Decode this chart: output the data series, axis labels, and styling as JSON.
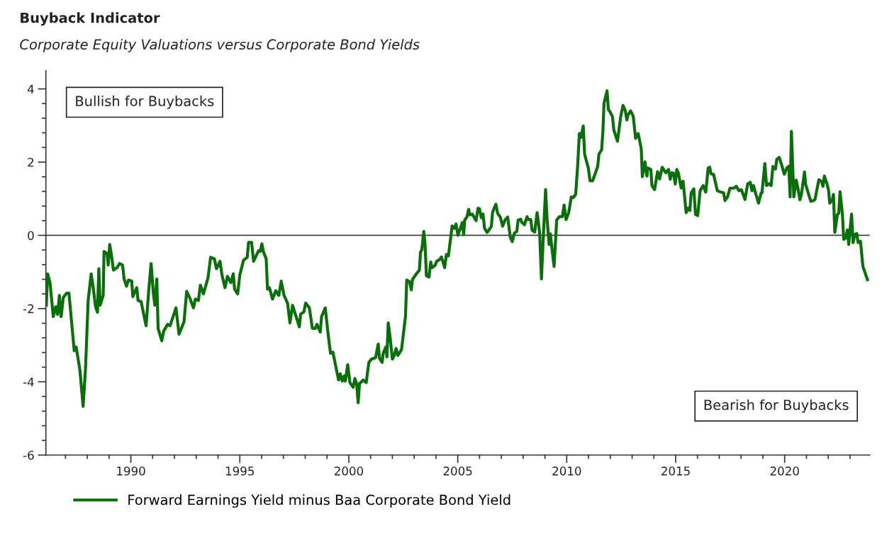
{
  "chart_data": {
    "type": "line",
    "title": "Buyback Indicator",
    "subtitle": "Corporate Equity Valuations versus Corporate Bond Yields",
    "annotations": [
      "Bullish for Buybacks",
      "Bearish for Buybacks"
    ],
    "xlim": [
      1986.1,
      2023.9
    ],
    "xticks": [
      {
        "value": 1987,
        "label": null
      },
      {
        "value": 1988,
        "label": null
      },
      {
        "value": 1989,
        "label": null
      },
      1990,
      {
        "value": 1991,
        "label": null
      },
      {
        "value": 1992,
        "label": null
      },
      {
        "value": 1993,
        "label": null
      },
      {
        "value": 1994,
        "label": null
      },
      1995,
      {
        "value": 1996,
        "label": null
      },
      {
        "value": 1997,
        "label": null
      },
      {
        "value": 1998,
        "label": null
      },
      {
        "value": 1999,
        "label": null
      },
      2000,
      {
        "value": 2001,
        "label": null
      },
      {
        "value": 2002,
        "label": null
      },
      {
        "value": 2003,
        "label": null
      },
      {
        "value": 2004,
        "label": null
      },
      2005,
      {
        "value": 2006,
        "label": null
      },
      {
        "value": 2007,
        "label": null
      },
      {
        "value": 2008,
        "label": null
      },
      {
        "value": 2009,
        "label": null
      },
      2010,
      {
        "value": 2011,
        "label": null
      },
      {
        "value": 2012,
        "label": null
      },
      {
        "value": 2013,
        "label": null
      },
      {
        "value": 2014,
        "label": null
      },
      2015,
      {
        "value": 2016,
        "label": null
      },
      {
        "value": 2017,
        "label": null
      },
      {
        "value": 2018,
        "label": null
      },
      {
        "value": 2019,
        "label": null
      },
      2020,
      {
        "value": 2021,
        "label": null
      },
      {
        "value": 2022,
        "label": null
      },
      {
        "value": 2023,
        "label": null
      }
    ],
    "ylim": [
      -6,
      4.5
    ],
    "yticks": [
      {
        "value": -6,
        "label": "-6"
      },
      {
        "value": -5.6,
        "label": null
      },
      {
        "value": -5.2,
        "label": null
      },
      {
        "value": -4.8,
        "label": null
      },
      {
        "value": -4.4,
        "label": null
      },
      {
        "value": -4,
        "label": "-4"
      },
      {
        "value": -3.6,
        "label": null
      },
      {
        "value": -3.2,
        "label": null
      },
      {
        "value": -2.8,
        "label": null
      },
      {
        "value": -2.4,
        "label": null
      },
      {
        "value": -2,
        "label": "-2"
      },
      {
        "value": -1.6,
        "label": null
      },
      {
        "value": -1.2,
        "label": null
      },
      {
        "value": -0.8,
        "label": null
      },
      {
        "value": -0.4,
        "label": null
      },
      0,
      {
        "value": 0.4,
        "label": null
      },
      {
        "value": 0.8,
        "label": null
      },
      {
        "value": 1.2,
        "label": null
      },
      {
        "value": 1.6,
        "label": null
      },
      2,
      {
        "value": 2.4,
        "label": null
      },
      {
        "value": 2.8,
        "label": null
      },
      {
        "value": 3.2,
        "label": null
      },
      {
        "value": 3.6,
        "label": null
      },
      4
    ],
    "ref_lines": [
      {
        "axis": "y",
        "value": 0,
        "color": "#404040"
      }
    ],
    "grid": false,
    "legend": "bottom",
    "marker": "none",
    "line_style": "solid",
    "x": [
      1986.12,
      1986.18,
      1986.29,
      1986.44,
      1986.55,
      1986.64,
      1986.72,
      1986.8,
      1986.9,
      1987.05,
      1987.16,
      1987.4,
      1987.49,
      1987.66,
      1987.81,
      1987.92,
      1988.04,
      1988.18,
      1988.29,
      1988.38,
      1988.47,
      1988.53,
      1988.59,
      1988.73,
      1988.77,
      1988.91,
      1988.96,
      1989.03,
      1989.11,
      1989.2,
      1989.37,
      1989.48,
      1989.62,
      1989.69,
      1989.8,
      1989.89,
      1990.04,
      1990.09,
      1990.27,
      1990.33,
      1990.47,
      1990.7,
      1990.82,
      1990.93,
      1991.03,
      1991.1,
      1991.19,
      1991.25,
      1991.42,
      1991.51,
      1991.69,
      1991.8,
      1992.07,
      1992.21,
      1992.44,
      1992.56,
      1992.7,
      1992.87,
      1992.96,
      1993.1,
      1993.19,
      1993.33,
      1993.54,
      1993.66,
      1993.83,
      1993.93,
      1994.09,
      1994.18,
      1994.32,
      1994.43,
      1994.59,
      1994.7,
      1994.76,
      1994.9,
      1995.0,
      1995.17,
      1995.34,
      1995.4,
      1995.54,
      1995.63,
      1995.86,
      1995.94,
      1996.01,
      1996.09,
      1996.21,
      1996.27,
      1996.36,
      1996.5,
      1996.65,
      1996.79,
      1996.9,
      1997.03,
      1997.19,
      1997.3,
      1997.42,
      1997.53,
      1997.73,
      1997.79,
      1997.94,
      1998.02,
      1998.19,
      1998.33,
      1998.46,
      1998.54,
      1998.69,
      1998.75,
      1998.92,
      1999.04,
      1999.16,
      1999.27,
      1999.53,
      1999.61,
      1999.7,
      1999.79,
      1999.84,
      1999.95,
      2000.05,
      2000.2,
      2000.28,
      2000.36,
      2000.43,
      2000.49,
      2000.66,
      2000.8,
      2000.92,
      2001.04,
      2001.23,
      2001.35,
      2001.41,
      2001.53,
      2001.58,
      2001.7,
      2001.75,
      2001.81,
      2001.9,
      2002.0,
      2002.08,
      2002.17,
      2002.25,
      2002.42,
      2002.6,
      2002.66,
      2002.79,
      2002.87,
      2002.92,
      2003.1,
      2003.24,
      2003.29,
      2003.35,
      2003.44,
      2003.5,
      2003.56,
      2003.68,
      2003.76,
      2003.82,
      2003.96,
      2004.03,
      2004.17,
      2004.25,
      2004.4,
      2004.48,
      2004.57,
      2004.66,
      2004.74,
      2004.84,
      2004.92,
      2005.01,
      2005.21,
      2005.27,
      2005.32,
      2005.42,
      2005.5,
      2005.55,
      2005.67,
      2005.84,
      2005.93,
      2006.0,
      2006.08,
      2006.16,
      2006.23,
      2006.35,
      2006.54,
      2006.6,
      2006.75,
      2006.83,
      2006.95,
      2007.06,
      2007.17,
      2007.29,
      2007.41,
      2007.5,
      2007.6,
      2007.71,
      2007.77,
      2007.89,
      2007.92,
      2008.06,
      2008.18,
      2008.23,
      2008.35,
      2008.41,
      2008.53,
      2008.64,
      2008.7,
      2008.76,
      2008.84,
      2008.93,
      2009.03,
      2009.1,
      2009.19,
      2009.25,
      2009.33,
      2009.42,
      2009.54,
      2009.66,
      2009.8,
      2009.88,
      2009.97,
      2010.09,
      2010.21,
      2010.3,
      2010.41,
      2010.5,
      2010.58,
      2010.65,
      2010.76,
      2010.82,
      2010.99,
      2011.07,
      2011.19,
      2011.42,
      2011.48,
      2011.6,
      2011.66,
      2011.71,
      2011.85,
      2011.91,
      2012.0,
      2012.1,
      2012.16,
      2012.33,
      2012.47,
      2012.58,
      2012.69,
      2012.76,
      2012.81,
      2012.93,
      2013.05,
      2013.16,
      2013.28,
      2013.42,
      2013.47,
      2013.59,
      2013.68,
      2013.72,
      2013.86,
      2013.91,
      2014.03,
      2014.17,
      2014.26,
      2014.38,
      2014.55,
      2014.67,
      2014.75,
      2014.82,
      2014.9,
      2014.98,
      2015.05,
      2015.13,
      2015.25,
      2015.34,
      2015.48,
      2015.57,
      2015.65,
      2015.71,
      2015.83,
      2015.91,
      2016.01,
      2016.12,
      2016.26,
      2016.38,
      2016.49,
      2016.56,
      2016.62,
      2016.74,
      2016.91,
      2017.03,
      2017.2,
      2017.26,
      2017.38,
      2017.49,
      2017.67,
      2017.78,
      2017.9,
      2018.01,
      2018.18,
      2018.3,
      2018.42,
      2018.5,
      2018.57,
      2018.68,
      2018.8,
      2018.92,
      2018.96,
      2019.09,
      2019.17,
      2019.29,
      2019.38,
      2019.46,
      2019.58,
      2019.64,
      2019.75,
      2019.87,
      2019.98,
      2020.1,
      2020.19,
      2020.25,
      2020.31,
      2020.42,
      2020.53,
      2020.62,
      2020.7,
      2020.77,
      2020.91,
      2020.96,
      2021.08,
      2021.2,
      2021.33,
      2021.39,
      2021.57,
      2021.69,
      2021.76,
      2021.82,
      2021.93,
      2022.01,
      2022.07,
      2022.19,
      2022.24,
      2022.3,
      2022.42,
      2022.48,
      2022.54,
      2022.6,
      2022.65,
      2022.71,
      2022.8,
      2022.88,
      2022.94,
      2022.99,
      2023.07,
      2023.14,
      2023.22,
      2023.31,
      2023.37,
      2023.48,
      2023.59,
      2023.8
    ],
    "series": [
      {
        "name": "Forward Earnings Yield minus Baa Corporate Bond Yield",
        "color": "#0a6e0a",
        "values": [
          -1.91,
          -1.05,
          -1.29,
          -2.22,
          -1.95,
          -2.16,
          -1.64,
          -2.22,
          -1.7,
          -1.58,
          -1.58,
          -3.15,
          -3.05,
          -3.67,
          -4.67,
          -3.63,
          -1.78,
          -1.05,
          -1.51,
          -1.95,
          -2.1,
          -0.91,
          -1.91,
          -1.64,
          -0.44,
          -0.5,
          -0.81,
          -0.25,
          -0.54,
          -0.95,
          -0.88,
          -0.77,
          -0.81,
          -1.19,
          -1.39,
          -1.22,
          -1.25,
          -1.67,
          -1.43,
          -1.78,
          -1.81,
          -2.47,
          -1.5,
          -0.77,
          -1.57,
          -1.91,
          -1.19,
          -2.54,
          -2.88,
          -2.61,
          -2.43,
          -2.47,
          -1.98,
          -2.7,
          -2.36,
          -1.53,
          -1.7,
          -1.98,
          -1.74,
          -1.78,
          -1.36,
          -1.6,
          -1.16,
          -0.6,
          -0.64,
          -0.91,
          -0.71,
          -1.08,
          -1.43,
          -1.12,
          -1.29,
          -1.05,
          -1.47,
          -1.6,
          -1.08,
          -0.68,
          -0.6,
          -0.19,
          -0.19,
          -0.71,
          -0.42,
          -0.44,
          -0.23,
          -0.46,
          -0.64,
          -1.47,
          -1.43,
          -1.74,
          -1.51,
          -1.64,
          -1.25,
          -1.64,
          -1.85,
          -2.39,
          -1.91,
          -2.12,
          -2.5,
          -2.15,
          -2.09,
          -1.85,
          -1.98,
          -2.54,
          -2.54,
          -2.43,
          -2.64,
          -2.22,
          -1.98,
          -2.64,
          -3.22,
          -3.19,
          -3.95,
          -3.78,
          -3.98,
          -3.84,
          -3.98,
          -3.53,
          -4.02,
          -4.15,
          -3.91,
          -4.05,
          -4.57,
          -4.05,
          -3.95,
          -4.02,
          -3.47,
          -3.38,
          -3.34,
          -2.97,
          -3.36,
          -3.47,
          -3.22,
          -3.05,
          -3.32,
          -2.39,
          -2.81,
          -3.38,
          -3.29,
          -3.09,
          -3.28,
          -3.12,
          -2.22,
          -1.22,
          -1.27,
          -1.49,
          -1.21,
          -1.05,
          -0.95,
          -0.46,
          -0.4,
          0.11,
          -0.25,
          -1.1,
          -1.14,
          -0.73,
          -0.88,
          -0.82,
          -0.71,
          -0.66,
          -0.59,
          -0.88,
          -0.52,
          -0.56,
          -0.14,
          0.26,
          0.19,
          0.31,
          0.0,
          0.35,
          0.02,
          0.42,
          0.5,
          0.71,
          0.56,
          0.58,
          0.4,
          0.74,
          0.72,
          0.48,
          0.58,
          0.19,
          0.08,
          0.24,
          0.64,
          0.85,
          0.6,
          0.5,
          0.25,
          0.42,
          0.5,
          -0.05,
          -0.17,
          0.06,
          0.11,
          0.42,
          0.44,
          0.37,
          0.29,
          0.51,
          0.43,
          0.43,
          0.14,
          0.09,
          0.62,
          0.37,
          0.02,
          -1.19,
          0.02,
          1.25,
          0.43,
          -0.25,
          0.04,
          -0.4,
          -0.85,
          0.42,
          0.51,
          0.51,
          0.83,
          0.43,
          0.62,
          1.05,
          1.03,
          1.12,
          1.88,
          2.78,
          2.67,
          2.99,
          2.22,
          1.84,
          1.49,
          1.49,
          1.88,
          2.22,
          2.33,
          2.84,
          3.6,
          3.95,
          3.44,
          3.36,
          3.24,
          2.88,
          2.57,
          3.22,
          3.55,
          3.4,
          3.15,
          3.29,
          3.4,
          3.26,
          2.65,
          2.78,
          2.36,
          1.6,
          2.01,
          1.62,
          1.84,
          1.8,
          1.36,
          1.25,
          1.74,
          1.54,
          1.86,
          1.71,
          1.8,
          1.53,
          1.71,
          1.69,
          1.4,
          1.8,
          1.69,
          1.29,
          1.48,
          0.62,
          0.74,
          0.68,
          1.16,
          1.27,
          0.57,
          0.54,
          1.22,
          1.36,
          1.18,
          1.84,
          1.86,
          1.68,
          1.66,
          1.22,
          1.19,
          1.16,
          0.95,
          1.05,
          1.29,
          1.29,
          1.34,
          1.22,
          1.25,
          0.98,
          1.4,
          1.45,
          1.22,
          1.36,
          1.12,
          0.88,
          1.16,
          1.16,
          1.96,
          1.36,
          1.41,
          1.36,
          1.88,
          1.81,
          2.08,
          2.13,
          1.91,
          1.67,
          1.84,
          1.89,
          1.05,
          2.84,
          1.05,
          1.51,
          1.25,
          0.97,
          1.12,
          1.73,
          1.4,
          1.16,
          0.93,
          0.95,
          0.98,
          1.52,
          1.47,
          1.34,
          1.62,
          1.43,
          1.25,
          0.88,
          0.97,
          1.12,
          0.08,
          0.57,
          0.6,
          1.19,
          0.86,
          0.57,
          -0.11,
          -0.07,
          0.15,
          -0.25,
          0.08,
          0.58,
          -0.2,
          0.03,
          0.05,
          -0.2,
          -0.16,
          -0.85,
          -1.21
        ]
      }
    ]
  }
}
